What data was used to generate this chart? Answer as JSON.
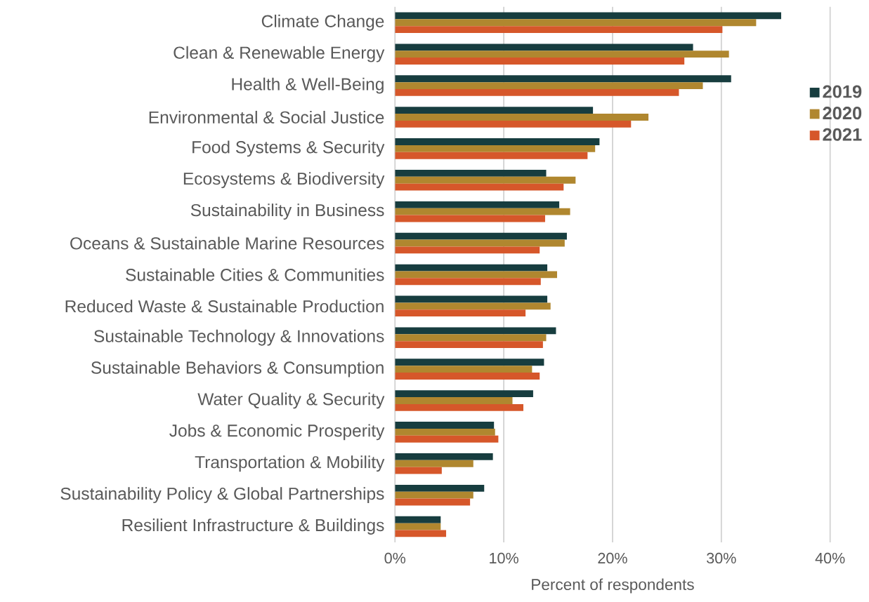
{
  "chart_data": {
    "type": "bar",
    "orientation": "horizontal",
    "xlabel": "Percent of respondents",
    "categories": [
      "Climate Change",
      "Clean & Renewable Energy",
      "Health & Well-Being",
      "Environmental & Social Justice",
      "Food Systems & Security",
      "Ecosystems & Biodiversity",
      "Sustainability in Business",
      "Oceans & Sustainable Marine Resources",
      "Sustainable Cities & Communities",
      "Reduced Waste & Sustainable Production",
      "Sustainable Technology & Innovations",
      "Sustainable Behaviors & Consumption",
      "Water Quality & Security",
      "Jobs & Economic Prosperity",
      "Transportation & Mobility",
      "Sustainability Policy & Global Partnerships",
      "Resilient Infrastructure & Buildings"
    ],
    "series": [
      {
        "name": "2019",
        "color": "#173d3f",
        "values": [
          35.5,
          27.4,
          30.9,
          18.2,
          18.8,
          13.9,
          15.1,
          15.8,
          14.0,
          14.0,
          14.8,
          13.7,
          12.7,
          9.1,
          9.0,
          8.2,
          4.2
        ]
      },
      {
        "name": "2020",
        "color": "#b0872f",
        "values": [
          33.2,
          30.7,
          28.3,
          23.3,
          18.4,
          16.6,
          16.1,
          15.6,
          14.9,
          14.3,
          13.9,
          12.6,
          10.8,
          9.2,
          7.2,
          7.2,
          4.2
        ]
      },
      {
        "name": "2021",
        "color": "#d6572a",
        "values": [
          30.1,
          26.6,
          26.1,
          21.7,
          17.7,
          15.5,
          13.8,
          13.3,
          13.4,
          12.0,
          13.6,
          13.3,
          11.8,
          9.5,
          4.3,
          6.9,
          4.7
        ]
      }
    ],
    "xlim": [
      0,
      40
    ],
    "xticks": [
      {
        "value": 0,
        "label": "0%"
      },
      {
        "value": 10,
        "label": "10%"
      },
      {
        "value": 20,
        "label": "20%"
      },
      {
        "value": 30,
        "label": "30%"
      },
      {
        "value": 40,
        "label": "40%"
      }
    ],
    "grid": "x",
    "legend": "right"
  }
}
